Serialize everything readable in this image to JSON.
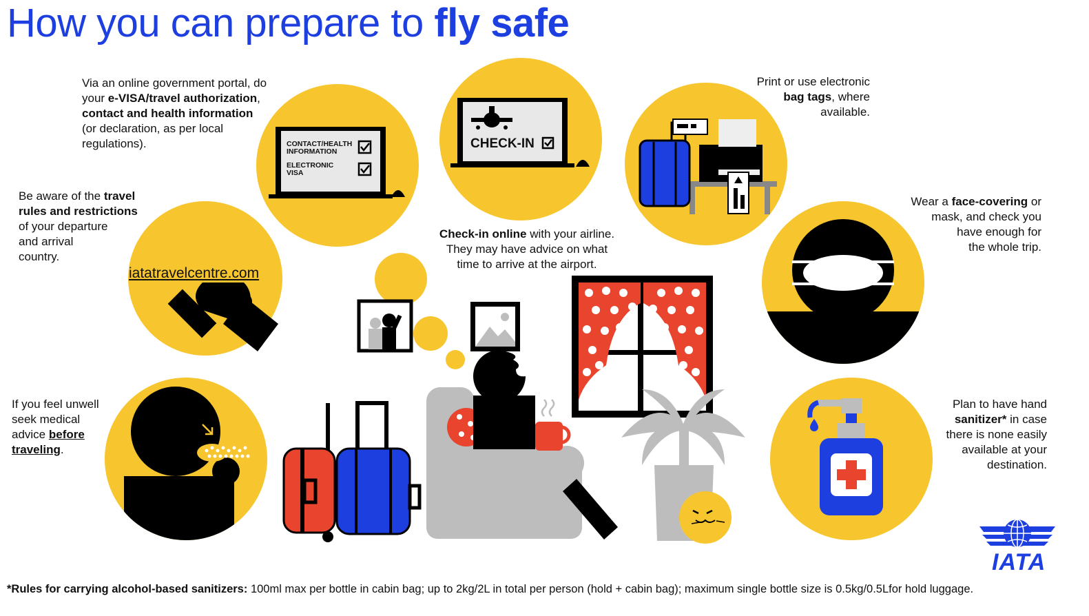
{
  "title": {
    "regular": "How you can prepare to ",
    "bold": "fly safe"
  },
  "evisa": {
    "line1": "Via an online government portal, do",
    "line2_pre": "your ",
    "line2_bold": "e-VISA/travel authorization",
    "line2_post": ",",
    "line3_bold": "contact and health information",
    "line4": "(or declaration, as per local",
    "line5": "regulations).",
    "screen_item1_line1": "CONTACT/HEALTH",
    "screen_item1_line2": "INFORMATION",
    "screen_item2_line1": "ELECTRONIC",
    "screen_item2_line2": "VISA"
  },
  "checkin": {
    "screen_label": "CHECK-IN",
    "line1_bold": "Check-in online",
    "line1_post": " with your airline.",
    "line2": "They may have advice on what",
    "line3": "time to arrive at the airport."
  },
  "bagtags": {
    "line1": "Print or use  electronic",
    "line2_bold": "bag tags",
    "line2_post": ", where",
    "line3": "available."
  },
  "rules": {
    "line1_pre": "Be aware of the ",
    "line1_bold": "travel",
    "line2_bold": "rules and restrictions",
    "line3": "of your departure",
    "line4": "and arrival",
    "line5": "country.",
    "link": "iatatravelcentre.com"
  },
  "mask": {
    "line1_pre": "Wear a ",
    "line1_bold": "face-covering",
    "line1_post": " or",
    "line2": "mask, and check you",
    "line3": "have enough for",
    "line4": "the whole trip."
  },
  "unwell": {
    "line1": "If you feel unwell",
    "line2": "seek medical",
    "line3_pre": "advice ",
    "line3_bold": "before",
    "line4_bold": "traveling",
    "line4_post": "."
  },
  "sanitizer": {
    "line1": "Plan to have hand",
    "line2_bold": "sanitizer*",
    "line2_post": " in case",
    "line3": "there is none easily",
    "line4": "available at your",
    "line5": "destination."
  },
  "footnote": {
    "bold": "*Rules for carrying alcohol-based sanitizers:",
    "text": " 100ml max per bottle in cabin bag; up to 2kg/2L in total per person (hold + cabin bag); maximum single  bottle size is 0.5kg/0.5Lfor hold luggage."
  },
  "logo": {
    "text": "IATA"
  },
  "colors": {
    "yellow": "#f7c52e",
    "blue": "#1d3fe0",
    "red": "#e8442e",
    "grey": "#bdbdbd",
    "black": "#000000"
  }
}
